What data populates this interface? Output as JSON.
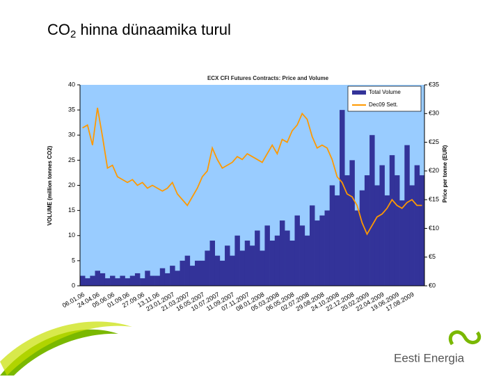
{
  "slide_title": {
    "main": "CO",
    "sub": "2",
    "rest": " hinna dünaamika turul"
  },
  "logo": "Eesti Energia",
  "chart_data": {
    "type": "bar_line",
    "title": "ECX CFI Futures Contracts: Price and Volume",
    "y_label": "VOLUME (million tonnes CO2)",
    "y2_label": "Price per tonne (EUR)",
    "categories": [
      "06.01.06",
      null,
      null,
      "24.04.06",
      null,
      null,
      "05.06.06",
      null,
      null,
      "01.09.06",
      null,
      null,
      "27.09.06",
      null,
      null,
      "13.11.06",
      null,
      null,
      "23.01.2007",
      null,
      null,
      "21.03.2007",
      null,
      null,
      "16.05.2007",
      null,
      null,
      "10.07.2007",
      null,
      null,
      "11.09.2007",
      null,
      null,
      "07.11.2007",
      null,
      null,
      "08.01.2008",
      null,
      null,
      "05.03.2008",
      null,
      null,
      "06.05.2008",
      null,
      null,
      "02.07.2008",
      null,
      null,
      "29.08.2008",
      null,
      null,
      "24.10.2008",
      null,
      null,
      "22.12.2008",
      null,
      null,
      "20.02.2009",
      null,
      null,
      "22.04.2009",
      null,
      null,
      "19.06.2009",
      null,
      null,
      "17.08.2009",
      null,
      null
    ],
    "series": [
      {
        "name": "Total Volume",
        "color": "#333399",
        "kind": "bar",
        "values": [
          2,
          1.5,
          2,
          3,
          2.5,
          1.5,
          2,
          1.5,
          2,
          1.5,
          2,
          2.5,
          1.5,
          3,
          2,
          2,
          3.5,
          2.5,
          4,
          3,
          5,
          6,
          4,
          5,
          5,
          7,
          9,
          6,
          5,
          8,
          6,
          10,
          7,
          9,
          8,
          11,
          7,
          12,
          9,
          10,
          13,
          11,
          9,
          14,
          12,
          10,
          16,
          13,
          14,
          15,
          20,
          18,
          35,
          22,
          25,
          15,
          19,
          22,
          30,
          20,
          24,
          18,
          26,
          22,
          17,
          28,
          20,
          24,
          22
        ]
      },
      {
        "name": "Dec09 Sett.",
        "color": "#ff9900",
        "kind": "line",
        "axis": "y2",
        "values": [
          27.5,
          28,
          24.5,
          31,
          26,
          20.5,
          21,
          19,
          18.5,
          18,
          18.5,
          17.5,
          18,
          17,
          17.5,
          17,
          16.5,
          17,
          18,
          16,
          15,
          14,
          15.5,
          17,
          19,
          20,
          24,
          22,
          20.5,
          21,
          21.5,
          22.5,
          22,
          23,
          22.5,
          22,
          21.5,
          23,
          24.5,
          23,
          25.5,
          25,
          27,
          28,
          30,
          29,
          26,
          24,
          24.5,
          24,
          22,
          19,
          18,
          16,
          15.5,
          14,
          11,
          9,
          10.5,
          12,
          12.5,
          13.5,
          15,
          14,
          13.5,
          14.5,
          15,
          14,
          14
        ]
      }
    ],
    "ylim": [
      0,
      40
    ],
    "yticks": [
      0,
      5,
      10,
      15,
      20,
      25,
      30,
      35,
      40
    ],
    "y2lim": [
      0,
      35
    ],
    "y2ticks": [
      {
        "value": 0,
        "label": "€0"
      },
      {
        "value": 5,
        "label": "€5"
      },
      {
        "value": 10,
        "label": "€10"
      },
      {
        "value": 15,
        "label": "€15"
      },
      {
        "value": 20,
        "label": "€20"
      },
      {
        "value": 25,
        "label": "€25"
      },
      {
        "value": 30,
        "label": "€30"
      },
      {
        "value": 35,
        "label": "€35"
      }
    ],
    "background": "#99ccff"
  }
}
